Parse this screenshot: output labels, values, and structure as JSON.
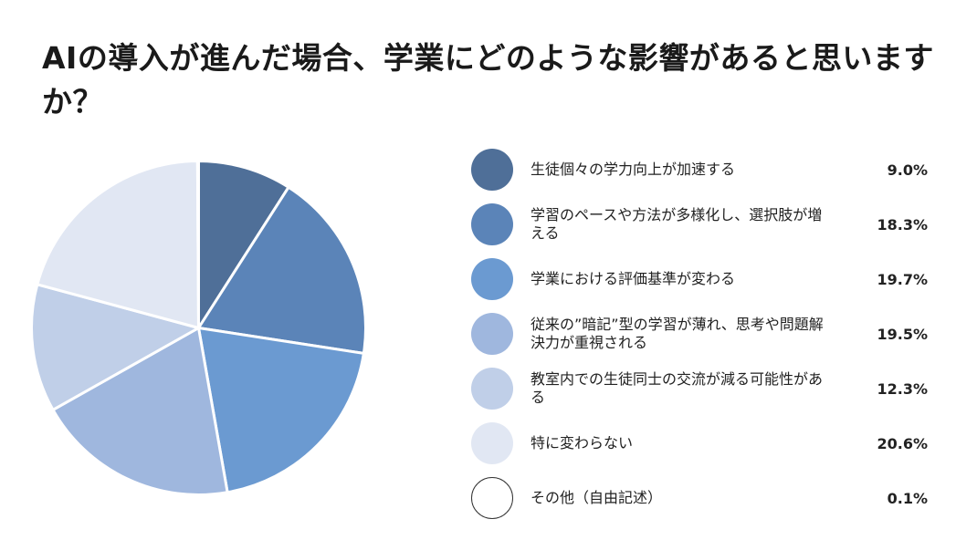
{
  "title": "AIの導入が進んだ場合、学業にどのような影響があると思いますか？",
  "chart_data": {
    "type": "pie",
    "title": "AIの導入が進んだ場合、学業にどのような影響があると思いますか？",
    "start_angle": "top",
    "direction": "clockwise",
    "legend_position": "right",
    "slices": [
      {
        "label": "生徒個々の学力向上が加速する",
        "value": 9.0,
        "display": "9.0%",
        "color": "#4f6f98"
      },
      {
        "label": "学習のペースや方法が多様化し、選択肢が増える",
        "value": 18.3,
        "display": "18.3%",
        "color": "#5b84b8"
      },
      {
        "label": "学業における評価基準が変わる",
        "value": 19.7,
        "display": "19.7%",
        "color": "#6b9ad1"
      },
      {
        "label": "従来の”暗記”型の学習が薄れ、思考や問題解決力が重視される",
        "value": 19.5,
        "display": "19.5%",
        "color": "#9fb7de"
      },
      {
        "label": "教室内での生徒同士の交流が減る可能性がある",
        "value": 12.3,
        "display": "12.3%",
        "color": "#c0cfe8"
      },
      {
        "label": "特に変わらない",
        "value": 20.6,
        "display": "20.6%",
        "color": "#e1e7f3"
      },
      {
        "label": "その他（自由記述）",
        "value": 0.1,
        "display": "0.1%",
        "color": "#ffffff"
      }
    ]
  }
}
